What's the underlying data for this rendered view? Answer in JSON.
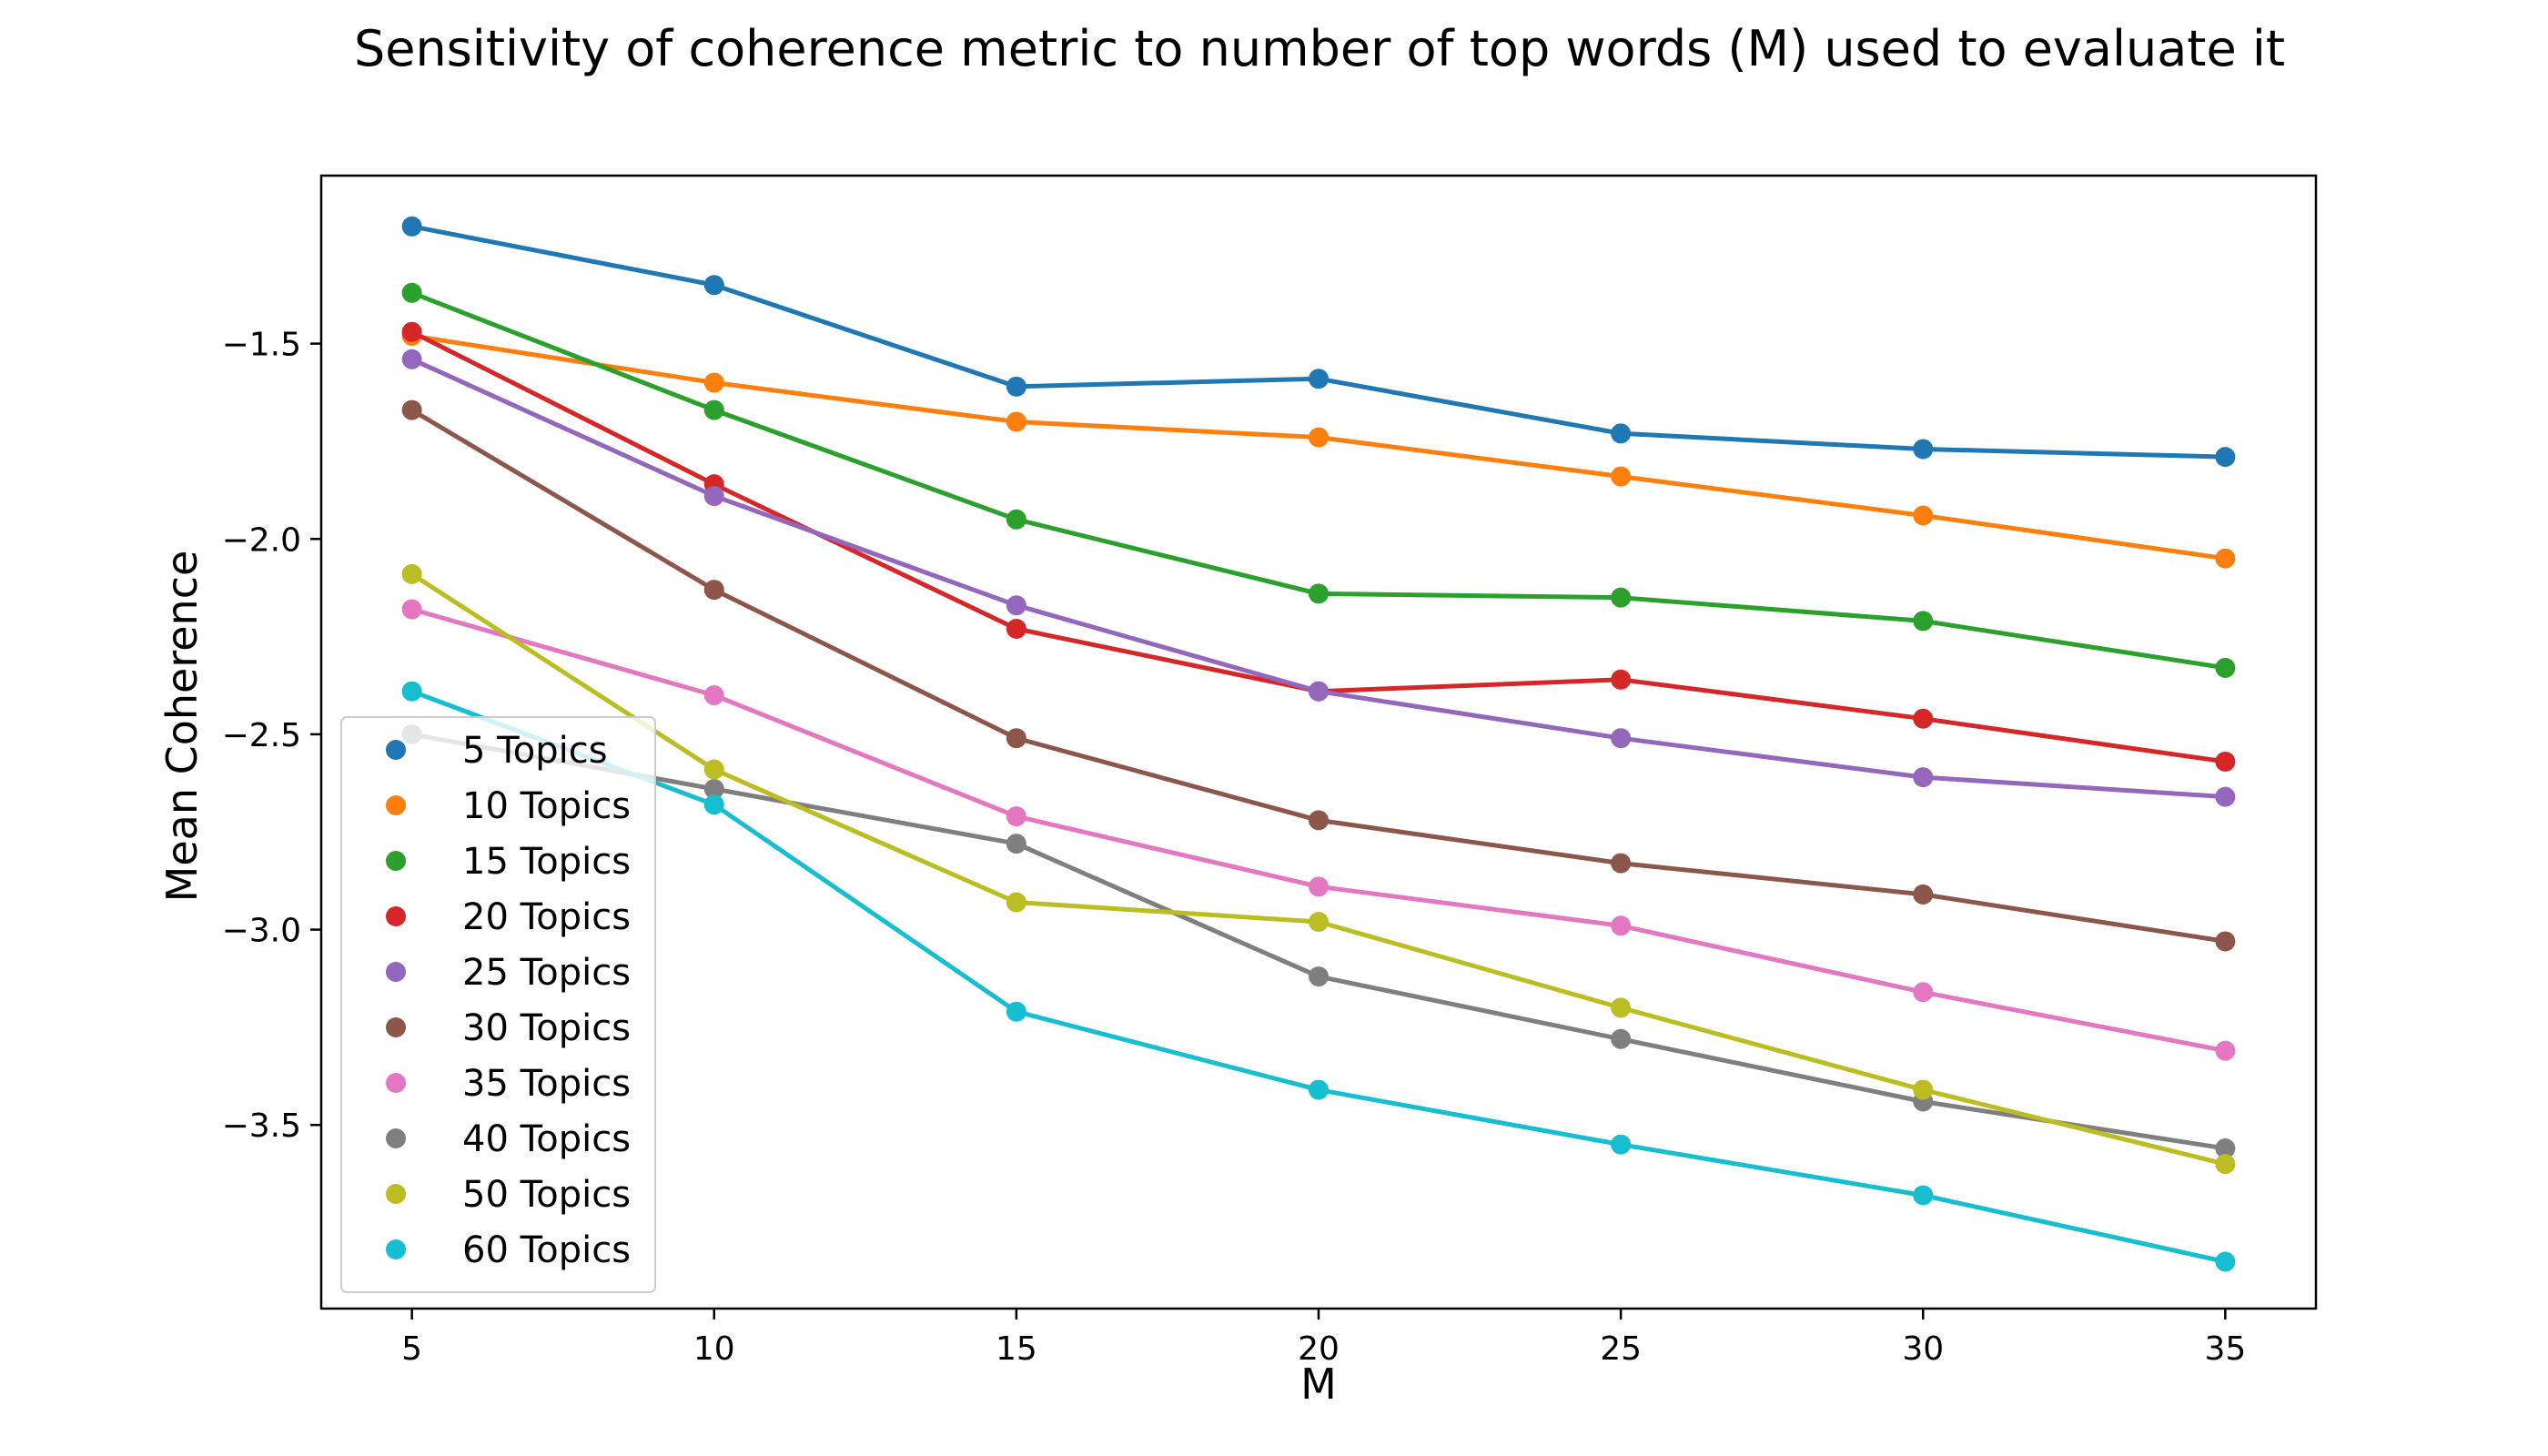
{
  "chart_data": {
    "type": "line",
    "title": "Sensitivity of coherence metric to number of top words (M) used to evaluate it",
    "xlabel": "M",
    "ylabel": "Mean Coherence",
    "x": [
      5,
      10,
      15,
      20,
      25,
      30,
      35
    ],
    "xlim": [
      3.5,
      36.5
    ],
    "ylim": [
      -3.97,
      -1.07
    ],
    "xticks": [
      5,
      10,
      15,
      20,
      25,
      30,
      35
    ],
    "yticks": [
      -1.5,
      -2.0,
      -2.5,
      -3.0,
      -3.5
    ],
    "ytick_labels": [
      "−1.5",
      "−2.0",
      "−2.5",
      "−3.0",
      "−3.5"
    ],
    "grid": false,
    "legend_position": "lower-left",
    "series": [
      {
        "name": "5 Topics",
        "color": "#1f77b4",
        "values": [
          -1.2,
          -1.35,
          -1.61,
          -1.59,
          -1.73,
          -1.77,
          -1.79
        ]
      },
      {
        "name": "10 Topics",
        "color": "#ff7f0e",
        "values": [
          -1.48,
          -1.6,
          -1.7,
          -1.74,
          -1.84,
          -1.94,
          -2.05
        ]
      },
      {
        "name": "15 Topics",
        "color": "#2ca02c",
        "values": [
          -1.37,
          -1.67,
          -1.95,
          -2.14,
          -2.15,
          -2.21,
          -2.33
        ]
      },
      {
        "name": "20 Topics",
        "color": "#d62728",
        "values": [
          -1.47,
          -1.86,
          -2.23,
          -2.39,
          -2.36,
          -2.46,
          -2.57
        ]
      },
      {
        "name": "25 Topics",
        "color": "#9467bd",
        "values": [
          -1.54,
          -1.89,
          -2.17,
          -2.39,
          -2.51,
          -2.61,
          -2.66
        ]
      },
      {
        "name": "30 Topics",
        "color": "#8c564b",
        "values": [
          -1.67,
          -2.13,
          -2.51,
          -2.72,
          -2.83,
          -2.91,
          -3.03
        ]
      },
      {
        "name": "35 Topics",
        "color": "#e377c2",
        "values": [
          -2.18,
          -2.4,
          -2.71,
          -2.89,
          -2.99,
          -3.16,
          -3.31
        ]
      },
      {
        "name": "40 Topics",
        "color": "#7f7f7f",
        "values": [
          -2.5,
          -2.64,
          -2.78,
          -3.12,
          -3.28,
          -3.44,
          -3.56
        ]
      },
      {
        "name": "50 Topics",
        "color": "#bcbd22",
        "values": [
          -2.09,
          -2.59,
          -2.93,
          -2.98,
          -3.2,
          -3.41,
          -3.6
        ]
      },
      {
        "name": "60 Topics",
        "color": "#17becf",
        "values": [
          -2.39,
          -2.68,
          -3.21,
          -3.41,
          -3.55,
          -3.68,
          -3.85
        ]
      }
    ]
  }
}
